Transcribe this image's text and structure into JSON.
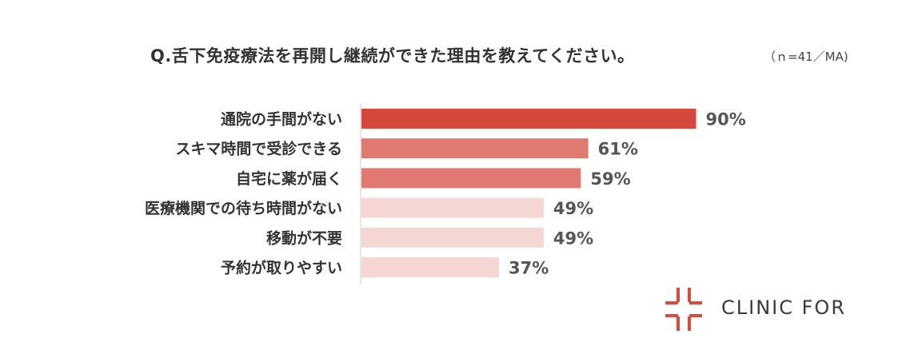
{
  "title": "Q.舌下免疫療法を再開し継続ができた理由を教えてください。",
  "note": "（ｎ=41／MA)",
  "brand": {
    "name": "CLINIC FOR",
    "color": "#d94b3c"
  },
  "chart_data": {
    "type": "bar",
    "orientation": "horizontal",
    "categories": [
      "通院の手間がない",
      "スキマ時間で受診できる",
      "自宅に薬が届く",
      "医療機関での待ち時間がない",
      "移動が不要",
      "予約が取りやすい"
    ],
    "values": [
      90,
      61,
      59,
      49,
      49,
      37
    ],
    "value_labels": [
      "90%",
      "61%",
      "59%",
      "49%",
      "49%",
      "37%"
    ],
    "colors": [
      "#d5483b",
      "#e07a70",
      "#e07a70",
      "#f4d7d3",
      "#f4d7d3",
      "#f4d7d3"
    ],
    "xlim": [
      0,
      100
    ],
    "grid": false,
    "legend": "none"
  }
}
